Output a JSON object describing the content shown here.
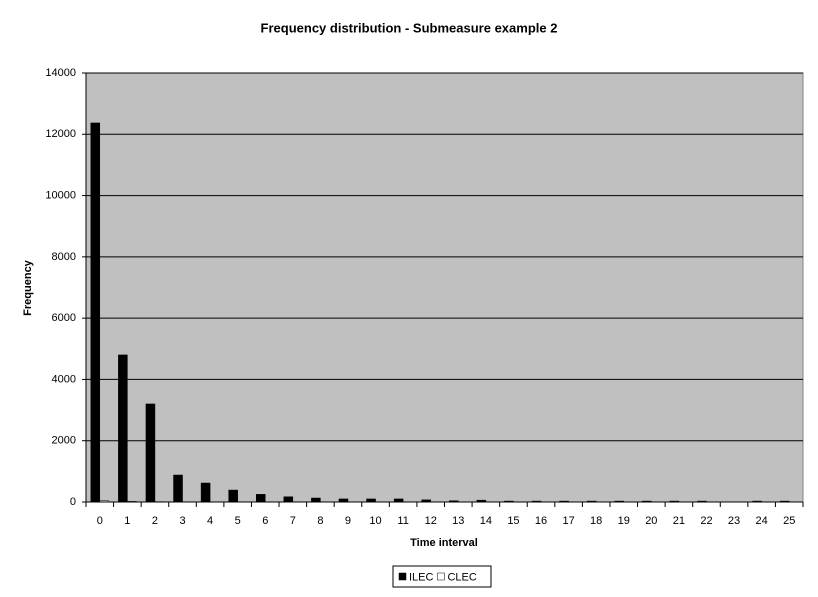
{
  "chart_data": {
    "type": "bar",
    "title": "Frequency distribution - Submeasure example 2",
    "x_label": "Time interval",
    "y_label": "Frequency",
    "categories": [
      "0",
      "1",
      "2",
      "3",
      "4",
      "5",
      "6",
      "7",
      "8",
      "9",
      "10",
      "11",
      "12",
      "13",
      "14",
      "15",
      "16",
      "17",
      "18",
      "19",
      "20",
      "21",
      "22",
      "23",
      "24",
      "25"
    ],
    "series": [
      {
        "name": "ILEC",
        "color": "#000000",
        "values": [
          12370,
          4800,
          3200,
          880,
          620,
          390,
          250,
          170,
          130,
          100,
          100,
          100,
          70,
          40,
          60,
          30,
          30,
          30,
          30,
          30,
          30,
          30,
          30,
          0,
          30,
          30
        ]
      },
      {
        "name": "CLEC",
        "color": "#ffffff",
        "values": [
          40,
          20,
          10,
          0,
          0,
          0,
          0,
          0,
          0,
          0,
          0,
          0,
          0,
          0,
          0,
          0,
          0,
          0,
          0,
          0,
          0,
          0,
          0,
          0,
          0,
          0
        ]
      }
    ],
    "ylim": [
      0,
      14000
    ],
    "yticks": [
      0,
      2000,
      4000,
      6000,
      8000,
      10000,
      12000,
      14000
    ],
    "grid": true,
    "plot_background": "#c0c0c0",
    "legend": "bottom"
  }
}
